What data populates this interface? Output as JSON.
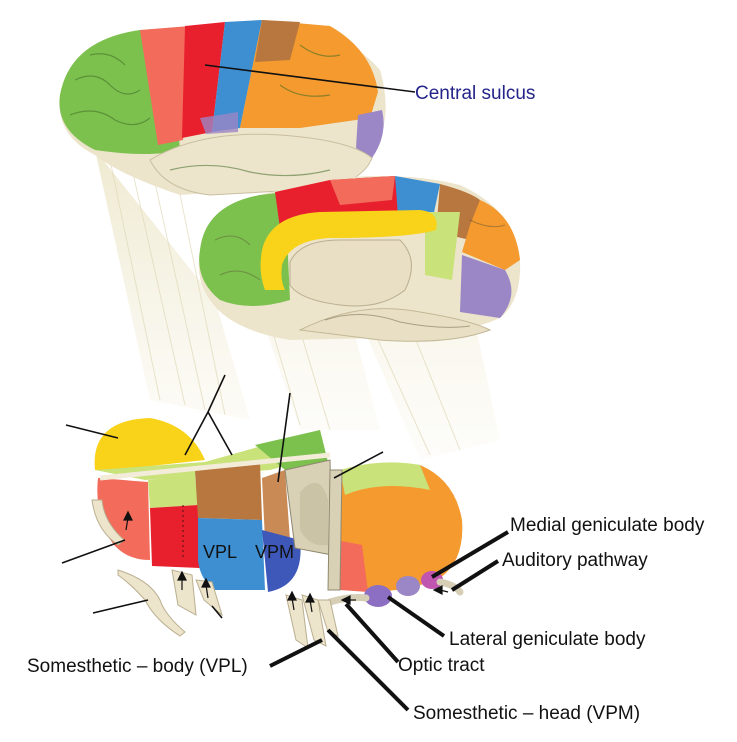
{
  "labels": {
    "central_sulcus": "Central sulcus",
    "medial_geniculate_body": "Medial geniculate body",
    "auditory_pathway": "Auditory pathway",
    "lateral_geniculate_body": "Lateral geniculate body",
    "optic_tract": "Optic tract",
    "somesthetic_body": "Somesthetic – body (VPL)",
    "somesthetic_head": "Somesthetic – head (VPM)",
    "vpl": "VPL",
    "vpm": "VPM"
  },
  "colors": {
    "frontal_green": "#7cc04e",
    "motor_red": "#e8202e",
    "premotor_salmon": "#f26b5b",
    "somatosensory_blue": "#3d8fd1",
    "parietal_orange": "#f49a2e",
    "occipital_purple": "#9b86c6",
    "temporal_beige": "#ede4cc",
    "cingulate_yellow": "#f9d21a",
    "brown": "#b8773e",
    "lime": "#c9e27a",
    "label_blue": "#24248a"
  }
}
